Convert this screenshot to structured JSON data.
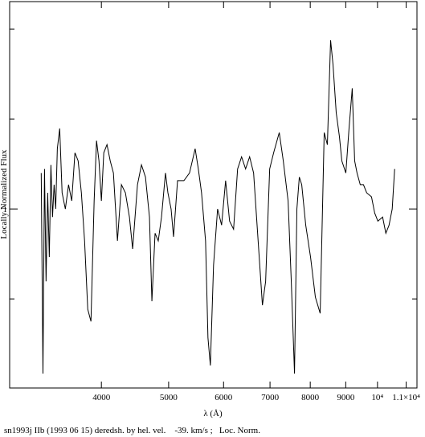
{
  "chart_data": {
    "type": "line",
    "xlabel": "λ (Å)",
    "ylabel": "Locally Normalized Flux",
    "caption": "sn1993j IIb (1993 06 15) deredsh. by hel. vel.    -39. km/s ;   Loc. Norm.",
    "x_log": true,
    "xlim": [
      2950,
      11400
    ],
    "xticks": [
      4000,
      5000,
      6000,
      7000,
      8000,
      9000,
      {
        "value": 10000,
        "label": "10⁴"
      },
      {
        "value": 11000,
        "label": "1.1×10⁴"
      }
    ],
    "ylim": [
      0.602,
      1.461
    ],
    "yticks": [
      1
    ],
    "minor_yticks": [
      0.8,
      1.2,
      1.4
    ],
    "series": [
      {
        "color": "#000000",
        "x": [
          3276,
          3295,
          3312,
          3329,
          3347,
          3365,
          3383,
          3401,
          3419,
          3437,
          3456,
          3483,
          3511,
          3549,
          3587,
          3625,
          3664,
          3703,
          3743,
          3783,
          3823,
          3864,
          3905,
          3936,
          3968,
          4000,
          4032,
          4075,
          4119,
          4163,
          4219,
          4275,
          4332,
          4390,
          4437,
          4509,
          4569,
          4630,
          4692,
          4730,
          4780,
          4831,
          4883,
          4948,
          4988,
          5041,
          5082,
          5150,
          5260,
          5359,
          5460,
          5518,
          5577,
          5652,
          5697,
          5743,
          5804,
          5882,
          5961,
          6041,
          6121,
          6203,
          6286,
          6370,
          6455,
          6542,
          6629,
          6718,
          6826,
          6899,
          6992,
          7085,
          7218,
          7315,
          7433,
          7512,
          7593,
          7653,
          7715,
          7777,
          7881,
          8008,
          8137,
          8268,
          8379,
          8468,
          8559,
          8628,
          8720,
          8813,
          8884,
          9003,
          9099,
          9196,
          9270,
          9344,
          9444,
          9545,
          9647,
          9803,
          9908,
          10013,
          10172,
          10281,
          10391,
          10501,
          10586
        ],
        "values": [
          1.08,
          0.634,
          1.089,
          0.839,
          1.036,
          0.893,
          1.098,
          0.982,
          1.054,
          1.0,
          1.134,
          1.179,
          1.036,
          1.0,
          1.054,
          1.018,
          1.125,
          1.107,
          1.036,
          0.929,
          0.777,
          0.75,
          1.018,
          1.152,
          1.107,
          1.018,
          1.125,
          1.143,
          1.107,
          1.08,
          0.929,
          1.054,
          1.036,
          0.982,
          0.911,
          1.054,
          1.098,
          1.071,
          0.982,
          0.795,
          0.946,
          0.929,
          0.982,
          1.08,
          1.036,
          1.0,
          0.938,
          1.063,
          1.063,
          1.08,
          1.134,
          1.089,
          1.036,
          0.929,
          0.714,
          0.652,
          0.875,
          1.0,
          0.964,
          1.063,
          0.973,
          0.955,
          1.089,
          1.116,
          1.089,
          1.116,
          1.08,
          0.946,
          0.786,
          0.839,
          1.089,
          1.125,
          1.17,
          1.107,
          1.018,
          0.839,
          0.634,
          1.0,
          1.071,
          1.054,
          0.964,
          0.893,
          0.804,
          0.768,
          1.17,
          1.143,
          1.375,
          1.321,
          1.214,
          1.161,
          1.107,
          1.08,
          1.179,
          1.268,
          1.107,
          1.08,
          1.054,
          1.054,
          1.036,
          1.027,
          0.991,
          0.973,
          0.982,
          0.946,
          0.964,
          1.0,
          1.089
        ]
      }
    ]
  }
}
